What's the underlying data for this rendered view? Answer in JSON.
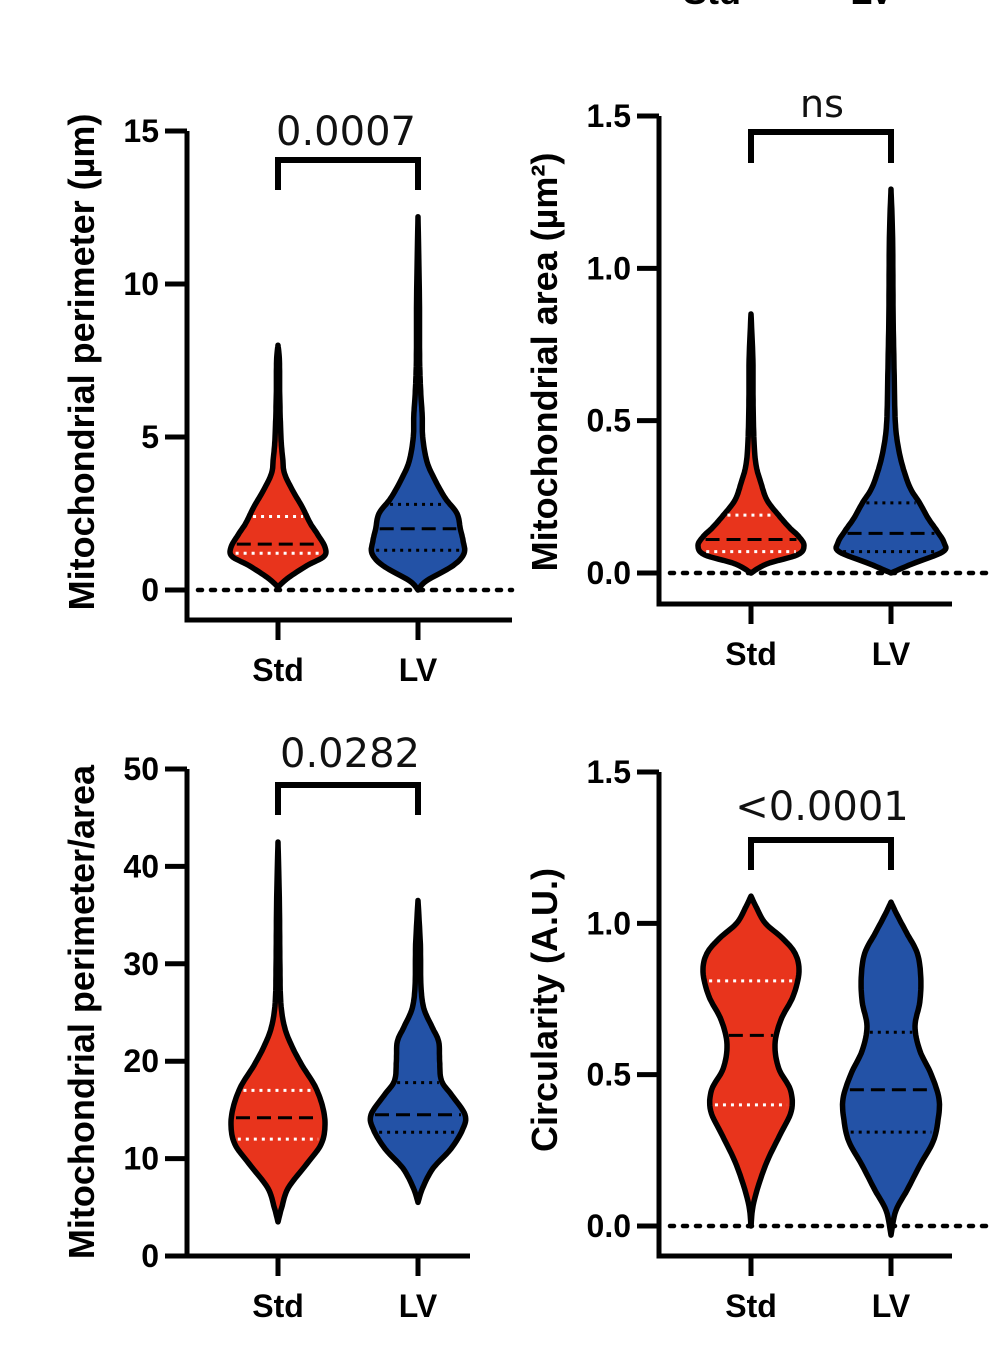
{
  "header_fragment": [
    "Std",
    "LV"
  ],
  "colors": {
    "Std": "#e8341c",
    "LV": "#2352a6",
    "outline": "#000000",
    "quartile_std": "#ffffff"
  },
  "chart_data": [
    {
      "type": "violin",
      "id": "perimeter",
      "ylabel": "Mitochondrial perimeter (µm)",
      "categories": [
        "Std",
        "LV"
      ],
      "ylim": [
        0,
        15
      ],
      "yticks": [
        0,
        5,
        10,
        15
      ],
      "ytick_labels": [
        "0",
        "5",
        "10",
        "15"
      ],
      "zero_line": true,
      "pvalue": "0.0007",
      "series": [
        {
          "name": "Std",
          "min": 0.1,
          "max": 8.0,
          "q1": 1.2,
          "median": 1.5,
          "q3": 2.4,
          "profile": [
            [
              0.1,
              0.0
            ],
            [
              0.4,
              0.22
            ],
            [
              0.8,
              0.62
            ],
            [
              1.1,
              0.98
            ],
            [
              1.4,
              1.0
            ],
            [
              1.8,
              0.85
            ],
            [
              2.2,
              0.68
            ],
            [
              2.7,
              0.52
            ],
            [
              3.2,
              0.33
            ],
            [
              3.8,
              0.14
            ],
            [
              4.3,
              0.1
            ],
            [
              4.8,
              0.07
            ],
            [
              5.5,
              0.05
            ],
            [
              6.5,
              0.035
            ],
            [
              7.5,
              0.03
            ],
            [
              8.0,
              0.0
            ]
          ]
        },
        {
          "name": "LV",
          "min": 0.0,
          "max": 12.2,
          "q1": 1.3,
          "median": 2.0,
          "q3": 2.8,
          "profile": [
            [
              0.0,
              0.0
            ],
            [
              0.3,
              0.18
            ],
            [
              0.8,
              0.75
            ],
            [
              1.2,
              0.98
            ],
            [
              1.6,
              0.96
            ],
            [
              2.0,
              0.9
            ],
            [
              2.5,
              0.83
            ],
            [
              3.0,
              0.58
            ],
            [
              3.6,
              0.36
            ],
            [
              4.2,
              0.19
            ],
            [
              5.0,
              0.1
            ],
            [
              5.7,
              0.09
            ],
            [
              6.4,
              0.06
            ],
            [
              7.5,
              0.035
            ],
            [
              9.5,
              0.03
            ],
            [
              12.2,
              0.0
            ]
          ]
        }
      ]
    },
    {
      "type": "violin",
      "id": "area",
      "ylabel": "Mitochondrial area (µm²)",
      "categories": [
        "Std",
        "LV"
      ],
      "ylim": [
        0,
        1.5
      ],
      "yticks": [
        0.0,
        0.5,
        1.0,
        1.5
      ],
      "ytick_labels": [
        "0.0",
        "0.5",
        "1.0",
        "1.5"
      ],
      "zero_line": true,
      "pvalue": "ns",
      "series": [
        {
          "name": "Std",
          "min": 0.0,
          "max": 0.85,
          "q1": 0.07,
          "median": 0.11,
          "q3": 0.19,
          "profile": [
            [
              0.0,
              0.0
            ],
            [
              0.03,
              0.3
            ],
            [
              0.06,
              0.88
            ],
            [
              0.09,
              1.0
            ],
            [
              0.12,
              0.9
            ],
            [
              0.15,
              0.72
            ],
            [
              0.19,
              0.52
            ],
            [
              0.24,
              0.3
            ],
            [
              0.3,
              0.18
            ],
            [
              0.35,
              0.1
            ],
            [
              0.42,
              0.06
            ],
            [
              0.55,
              0.04
            ],
            [
              0.7,
              0.035
            ],
            [
              0.85,
              0.0
            ]
          ]
        },
        {
          "name": "LV",
          "min": 0.0,
          "max": 1.26,
          "q1": 0.07,
          "median": 0.13,
          "q3": 0.23,
          "profile": [
            [
              0.0,
              0.0
            ],
            [
              0.03,
              0.4
            ],
            [
              0.07,
              0.98
            ],
            [
              0.1,
              1.0
            ],
            [
              0.14,
              0.86
            ],
            [
              0.18,
              0.7
            ],
            [
              0.23,
              0.54
            ],
            [
              0.28,
              0.36
            ],
            [
              0.35,
              0.22
            ],
            [
              0.42,
              0.13
            ],
            [
              0.5,
              0.08
            ],
            [
              0.65,
              0.06
            ],
            [
              0.85,
              0.04
            ],
            [
              1.1,
              0.03
            ],
            [
              1.26,
              0.0
            ]
          ]
        }
      ]
    },
    {
      "type": "violin",
      "id": "perimeter-area",
      "ylabel": "Mitochondrial perimeter/area",
      "categories": [
        "Std",
        "LV"
      ],
      "ylim": [
        0,
        50
      ],
      "yticks": [
        0,
        10,
        20,
        30,
        40,
        50
      ],
      "ytick_labels": [
        "0",
        "10",
        "20",
        "30",
        "40",
        "50"
      ],
      "zero_line": false,
      "pvalue": "0.0282",
      "series": [
        {
          "name": "Std",
          "min": 3.5,
          "max": 42.5,
          "q1": 12.0,
          "median": 14.2,
          "q3": 17.0,
          "profile": [
            [
              3.5,
              0.0
            ],
            [
              5.0,
              0.08
            ],
            [
              7.0,
              0.22
            ],
            [
              9.5,
              0.62
            ],
            [
              11.5,
              0.92
            ],
            [
              13.5,
              1.0
            ],
            [
              15.5,
              0.94
            ],
            [
              17.5,
              0.78
            ],
            [
              19.5,
              0.52
            ],
            [
              21.5,
              0.3
            ],
            [
              23.5,
              0.14
            ],
            [
              26,
              0.06
            ],
            [
              30,
              0.04
            ],
            [
              36,
              0.03
            ],
            [
              42.5,
              0.0
            ]
          ]
        },
        {
          "name": "LV",
          "min": 5.5,
          "max": 36.5,
          "q1": 12.7,
          "median": 14.5,
          "q3": 17.8,
          "profile": [
            [
              5.5,
              0.0
            ],
            [
              7.0,
              0.1
            ],
            [
              9.0,
              0.32
            ],
            [
              11.0,
              0.7
            ],
            [
              13.0,
              0.95
            ],
            [
              14.5,
              1.0
            ],
            [
              16.5,
              0.72
            ],
            [
              18.0,
              0.5
            ],
            [
              20.0,
              0.46
            ],
            [
              22.0,
              0.44
            ],
            [
              23.5,
              0.3
            ],
            [
              25.5,
              0.12
            ],
            [
              28,
              0.06
            ],
            [
              32,
              0.05
            ],
            [
              36.5,
              0.0
            ]
          ]
        }
      ]
    },
    {
      "type": "violin",
      "id": "circularity",
      "ylabel": "Circularity (A.U.)",
      "categories": [
        "Std",
        "LV"
      ],
      "ylim": [
        0,
        1.5
      ],
      "yticks": [
        0.0,
        0.5,
        1.0,
        1.5
      ],
      "ytick_labels": [
        "0.0",
        "0.5",
        "1.0",
        "1.5"
      ],
      "zero_line": true,
      "pvalue": "<0.0001",
      "series": [
        {
          "name": "Std",
          "min": 0.0,
          "max": 1.09,
          "q1": 0.4,
          "median": 0.63,
          "q3": 0.81,
          "profile": [
            [
              0.0,
              0.0
            ],
            [
              0.08,
              0.06
            ],
            [
              0.2,
              0.3
            ],
            [
              0.3,
              0.6
            ],
            [
              0.38,
              0.84
            ],
            [
              0.45,
              0.82
            ],
            [
              0.52,
              0.58
            ],
            [
              0.6,
              0.5
            ],
            [
              0.68,
              0.62
            ],
            [
              0.76,
              0.88
            ],
            [
              0.84,
              1.0
            ],
            [
              0.9,
              0.92
            ],
            [
              0.95,
              0.66
            ],
            [
              1.0,
              0.3
            ],
            [
              1.05,
              0.12
            ],
            [
              1.09,
              0.0
            ]
          ]
        },
        {
          "name": "LV",
          "min": -0.03,
          "max": 1.07,
          "q1": 0.31,
          "median": 0.45,
          "q3": 0.64,
          "profile": [
            [
              -0.03,
              0.0
            ],
            [
              0.05,
              0.1
            ],
            [
              0.12,
              0.34
            ],
            [
              0.2,
              0.6
            ],
            [
              0.28,
              0.88
            ],
            [
              0.35,
              0.98
            ],
            [
              0.42,
              1.0
            ],
            [
              0.5,
              0.84
            ],
            [
              0.58,
              0.6
            ],
            [
              0.66,
              0.5
            ],
            [
              0.74,
              0.6
            ],
            [
              0.82,
              0.62
            ],
            [
              0.9,
              0.55
            ],
            [
              0.97,
              0.32
            ],
            [
              1.03,
              0.12
            ],
            [
              1.07,
              0.0
            ]
          ]
        }
      ]
    }
  ]
}
